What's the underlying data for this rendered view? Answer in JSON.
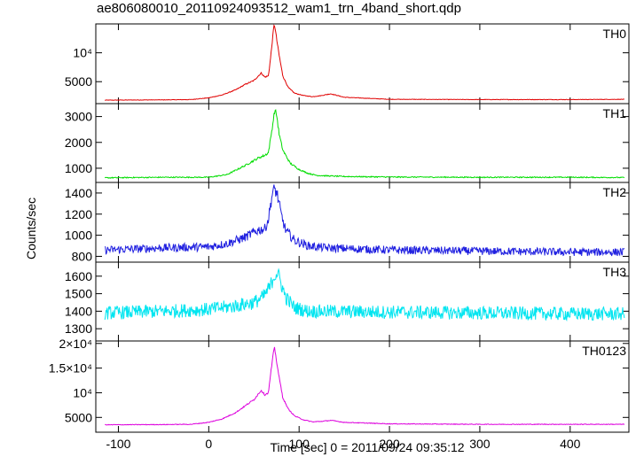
{
  "title": "ae806080010_20110924093512_wam1_trn_4band_short.qdp",
  "ylabel": "Counts/sec",
  "xlabel": "Time [sec] 0 = 2011/09/24 09:35:12",
  "chart_data": [
    {
      "type": "line",
      "name": "TH0",
      "color": "#e00000",
      "xlim": [
        -125,
        465
      ],
      "ylim": [
        1200,
        15000
      ],
      "yticks": [
        {
          "v": 5000,
          "label": "5000"
        },
        {
          "v": 10000,
          "label": "10⁴"
        }
      ],
      "noise": 0.02,
      "x": [
        -115,
        -50,
        -20,
        0,
        15,
        30,
        40,
        50,
        58,
        62,
        66,
        68,
        70,
        72,
        73,
        75,
        78,
        82,
        88,
        95,
        105,
        115,
        125,
        135,
        150,
        200,
        300,
        400,
        460
      ],
      "y": [
        1800,
        1850,
        1900,
        2200,
        2700,
        3600,
        4500,
        5200,
        6500,
        5800,
        6000,
        8500,
        11500,
        14500,
        14800,
        12500,
        9500,
        6000,
        4000,
        3000,
        2600,
        2400,
        2600,
        2900,
        2300,
        1950,
        1900,
        1900,
        1950
      ]
    },
    {
      "type": "line",
      "name": "TH1",
      "color": "#00dd00",
      "xlim": [
        -125,
        465
      ],
      "ylim": [
        450,
        3500
      ],
      "yticks": [
        {
          "v": 1000,
          "label": "1000"
        },
        {
          "v": 2000,
          "label": "2000"
        },
        {
          "v": 3000,
          "label": "3000"
        }
      ],
      "noise": 0.03,
      "x": [
        -115,
        -50,
        0,
        20,
        40,
        55,
        62,
        66,
        70,
        73,
        75,
        78,
        82,
        90,
        100,
        110,
        120,
        150,
        200,
        300,
        400,
        460
      ],
      "y": [
        630,
        650,
        650,
        750,
        1100,
        1400,
        1500,
        1600,
        2500,
        3250,
        3100,
        2300,
        1700,
        1200,
        950,
        800,
        720,
        680,
        660,
        650,
        650,
        640
      ]
    },
    {
      "type": "line",
      "name": "TH2",
      "color": "#2020e0",
      "xlim": [
        -125,
        465
      ],
      "ylim": [
        745,
        1500
      ],
      "yticks": [
        {
          "v": 800,
          "label": "800"
        },
        {
          "v": 1000,
          "label": "1000"
        },
        {
          "v": 1200,
          "label": "1200"
        },
        {
          "v": 1400,
          "label": "1400"
        }
      ],
      "noise": 0.045,
      "x": [
        -115,
        -50,
        0,
        20,
        40,
        55,
        62,
        66,
        70,
        73,
        76,
        80,
        85,
        95,
        110,
        130,
        200,
        300,
        400,
        460
      ],
      "y": [
        860,
        880,
        890,
        920,
        980,
        1050,
        1060,
        1150,
        1380,
        1440,
        1380,
        1200,
        1050,
        950,
        900,
        880,
        860,
        850,
        840,
        840
      ]
    },
    {
      "type": "line",
      "name": "TH3",
      "color": "#00e5f0",
      "xlim": [
        -125,
        465
      ],
      "ylim": [
        1230,
        1680
      ],
      "yticks": [
        {
          "v": 1300,
          "label": "1300"
        },
        {
          "v": 1400,
          "label": "1400"
        },
        {
          "v": 1500,
          "label": "1500"
        },
        {
          "v": 1600,
          "label": "1600"
        }
      ],
      "noise": 0.028,
      "x": [
        -115,
        -50,
        0,
        30,
        50,
        60,
        68,
        72,
        76,
        80,
        85,
        95,
        110,
        200,
        300,
        400,
        460
      ],
      "y": [
        1390,
        1400,
        1410,
        1430,
        1450,
        1480,
        1540,
        1600,
        1620,
        1560,
        1480,
        1420,
        1400,
        1395,
        1390,
        1385,
        1385
      ]
    },
    {
      "type": "line",
      "name": "TH0123",
      "color": "#dd00dd",
      "xlim": [
        -125,
        465
      ],
      "ylim": [
        2000,
        20500
      ],
      "yticks": [
        {
          "v": 5000,
          "label": "5000"
        },
        {
          "v": 10000,
          "label": "10⁴"
        },
        {
          "v": 15000,
          "label": "1.5×10⁴"
        },
        {
          "v": 20000,
          "label": "2×10⁴"
        }
      ],
      "noise": 0.018,
      "x": [
        -115,
        -50,
        -20,
        0,
        15,
        30,
        40,
        50,
        58,
        62,
        66,
        68,
        70,
        72,
        73,
        75,
        78,
        82,
        88,
        95,
        105,
        115,
        125,
        135,
        150,
        200,
        300,
        400,
        460
      ],
      "y": [
        3500,
        3550,
        3600,
        4000,
        4700,
        6000,
        7300,
        8600,
        10500,
        9600,
        10000,
        13000,
        16000,
        18500,
        19000,
        16500,
        13000,
        9000,
        6700,
        5300,
        4500,
        4100,
        4200,
        4400,
        4000,
        3700,
        3600,
        3600,
        3600
      ]
    }
  ],
  "xaxis": {
    "ticks": [
      {
        "v": -100,
        "label": "-100"
      },
      {
        "v": 0,
        "label": "0"
      },
      {
        "v": 100,
        "label": "100"
      },
      {
        "v": 200,
        "label": "200"
      },
      {
        "v": 300,
        "label": "300"
      },
      {
        "v": 400,
        "label": "400"
      }
    ]
  }
}
